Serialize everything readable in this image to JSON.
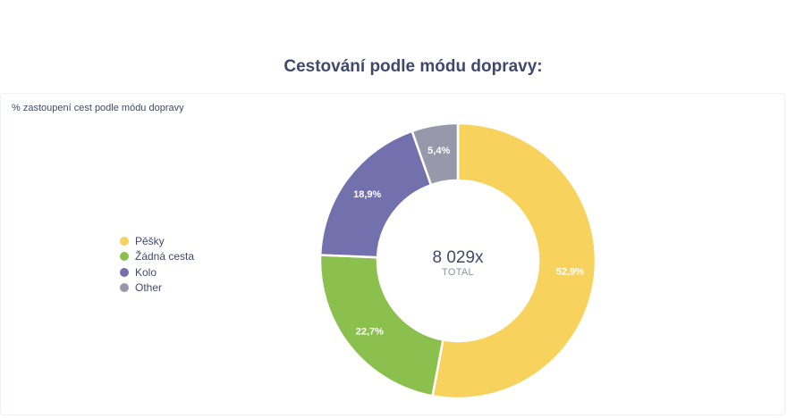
{
  "header": {
    "title": "Cestování podle módu dopravy:"
  },
  "panel": {
    "subtitle": "% zastoupení cest podle módu dopravy"
  },
  "chart_data": {
    "type": "pie",
    "style": "donut",
    "title": "Cestování podle módu dopravy:",
    "subtitle": "% zastoupení cest podle módu dopravy",
    "legend_position": "left",
    "center_value": "8 029x",
    "center_label": "TOTAL",
    "slices": [
      {
        "name": "Pěšky",
        "value": 52.9,
        "label": "52,9%",
        "color": "#f7d35e"
      },
      {
        "name": "Žádná cesta",
        "value": 22.7,
        "label": "22,7%",
        "color": "#8bc04f"
      },
      {
        "name": "Kolo",
        "value": 18.9,
        "label": "18,9%",
        "color": "#7270ad"
      },
      {
        "name": "Other",
        "value": 5.4,
        "label": "5,4%",
        "color": "#9799ab"
      }
    ]
  }
}
